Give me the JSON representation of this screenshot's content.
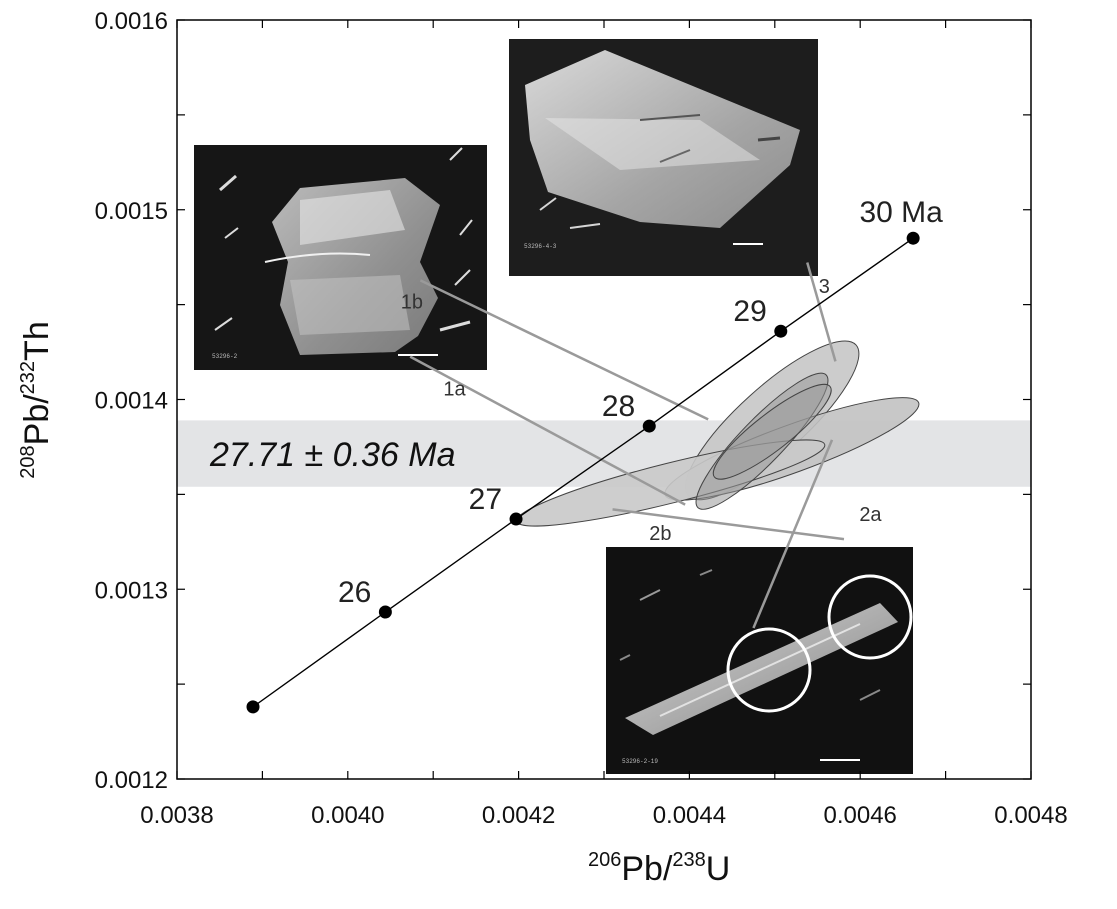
{
  "chart_data": {
    "type": "scatter",
    "xlim": [
      0.0038,
      0.0048
    ],
    "ylim": [
      0.0012,
      0.0016
    ],
    "x_ticks": [
      "0.0038",
      "0.0040",
      "0.0042",
      "0.0044",
      "0.0046",
      "0.0048"
    ],
    "y_ticks": [
      "0.0012",
      "0.0013",
      "0.0014",
      "0.0015",
      "0.0016"
    ],
    "xlabel": {
      "sup1": "206",
      "base1": "Pb/",
      "sup2": "238",
      "base2": "U"
    },
    "ylabel": {
      "sup1": "208",
      "base1": "Pb/",
      "sup2": "232",
      "base2": "Th"
    },
    "concordia": [
      {
        "age": "",
        "x": 0.003889,
        "y": 0.001238
      },
      {
        "age": "26",
        "x": 0.004044,
        "y": 0.001288
      },
      {
        "age": "27",
        "x": 0.004197,
        "y": 0.001337
      },
      {
        "age": "28",
        "x": 0.004353,
        "y": 0.001386
      },
      {
        "age": "29",
        "x": 0.004507,
        "y": 0.001436
      },
      {
        "age": "30 Ma",
        "x": 0.004662,
        "y": 0.001485
      }
    ],
    "mean_age": {
      "label": "27.71 ± 0.36 Ma",
      "y_low": 0.001354,
      "y_high": 0.001389
    },
    "ellipses": [
      {
        "cx": 0.004497,
        "cy": 0.001389,
        "rx": 0.000132,
        "ry": 1.75e-05,
        "angle": -42,
        "fill": "#c7c7c7"
      },
      {
        "cx": 0.00452,
        "cy": 0.001374,
        "rx": 0.000158,
        "ry": 1.25e-05,
        "angle": -20,
        "fill": "#c2c2c2"
      },
      {
        "cx": 0.004378,
        "cy": 0.001356,
        "rx": 0.000186,
        "ry": 1.05e-05,
        "angle": -14,
        "fill": "#c9c9c9"
      },
      {
        "cx": 0.004485,
        "cy": 0.001378,
        "rx": 0.000108,
        "ry": 1.15e-05,
        "angle": -46,
        "fill": "#999999",
        "opacity": 0.55
      },
      {
        "cx": 0.004497,
        "cy": 0.001383,
        "rx": 8.6e-05,
        "ry": 9.5e-06,
        "angle": -38,
        "fill": "#9a9a9a",
        "opacity": 0.5
      }
    ],
    "annotations": [
      {
        "label": "1b",
        "x": 0.004075,
        "y": 0.001448
      },
      {
        "label": "1a",
        "x": 0.004125,
        "y": 0.001402
      },
      {
        "label": "3",
        "x": 0.004558,
        "y": 0.001456
      },
      {
        "label": "2a",
        "x": 0.004612,
        "y": 0.001336
      },
      {
        "label": "2b",
        "x": 0.004366,
        "y": 0.001326
      }
    ],
    "callouts": [
      {
        "x1": 0.004085,
        "y1": 0.0014628,
        "x2": 0.004422,
        "y2": 0.0013895
      },
      {
        "x1": 0.004073,
        "y1": 0.0014226,
        "x2": 0.004395,
        "y2": 0.0013446
      },
      {
        "x1": 0.004538,
        "y1": 0.0014722,
        "x2": 0.004571,
        "y2": 0.0014201
      },
      {
        "x1": 0.00431,
        "y1": 0.0013421,
        "x2": 0.004581,
        "y2": 0.0013264
      },
      {
        "x1": 0.004567,
        "y1": 0.0013787,
        "x2": 0.004475,
        "y2": 0.0012796
      }
    ],
    "image_captions": [
      "53296-2",
      "53296-4-3",
      "53296-2-19"
    ],
    "grid": false
  }
}
